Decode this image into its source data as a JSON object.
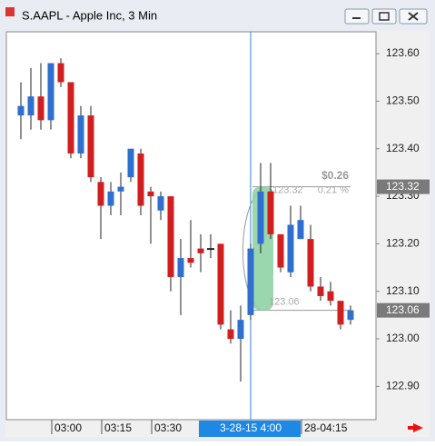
{
  "chart_data": {
    "type": "candlestick",
    "title": "S.AAPL - Apple Inc, 3 Min",
    "categories": [
      null,
      null,
      null,
      "03:00",
      null,
      null,
      null,
      null,
      "03:15",
      null,
      null,
      null,
      null,
      "03:30",
      null,
      null,
      null,
      null,
      null,
      null,
      null,
      null,
      null,
      "3-28-15  4:00",
      null,
      null,
      null,
      null,
      "28-04:15",
      null,
      null,
      null,
      null,
      null
    ],
    "highlight_category": 23,
    "open": [
      123.47,
      123.47,
      123.51,
      123.46,
      123.58,
      123.54,
      123.39,
      123.47,
      123.33,
      123.28,
      123.31,
      123.34,
      123.39,
      123.31,
      123.27,
      123.3,
      123.13,
      123.17,
      123.19,
      123.19,
      123.2,
      123.02,
      123.0,
      123.05,
      123.2,
      123.31,
      123.22,
      123.14,
      123.21,
      123.21,
      123.11,
      123.1,
      123.08,
      123.04
    ],
    "high": [
      123.54,
      123.57,
      123.58,
      123.58,
      123.59,
      123.54,
      123.49,
      123.49,
      123.34,
      123.33,
      123.35,
      123.4,
      123.4,
      123.32,
      123.31,
      123.3,
      123.21,
      123.25,
      123.22,
      123.22,
      123.2,
      123.06,
      123.07,
      123.2,
      123.37,
      123.37,
      123.22,
      123.28,
      123.28,
      123.24,
      123.13,
      123.12,
      123.08,
      123.07
    ],
    "low": [
      123.42,
      123.44,
      123.44,
      123.44,
      123.53,
      123.38,
      123.38,
      123.33,
      123.21,
      123.26,
      123.26,
      123.33,
      123.26,
      123.2,
      123.25,
      123.1,
      123.05,
      123.15,
      123.14,
      123.17,
      123.02,
      122.99,
      122.91,
      123.04,
      123.18,
      123.21,
      123.14,
      123.13,
      123.21,
      123.1,
      123.08,
      123.07,
      123.02,
      123.03
    ],
    "close": [
      123.49,
      123.51,
      123.46,
      123.58,
      123.54,
      123.39,
      123.47,
      123.34,
      123.28,
      123.31,
      123.32,
      123.4,
      123.28,
      123.3,
      123.3,
      123.13,
      123.17,
      123.16,
      123.18,
      123.19,
      123.03,
      123.0,
      123.04,
      123.19,
      123.31,
      123.22,
      123.15,
      123.24,
      123.25,
      123.11,
      123.09,
      123.08,
      123.03,
      123.06
    ],
    "up_color": "#2f6fcf",
    "down_color": "#d11f1f",
    "ylim": [
      122.83,
      123.646
    ],
    "yticks": [
      {
        "value": 122.9,
        "label": "122.90"
      },
      {
        "value": 123.0,
        "label": "123.00"
      },
      {
        "value": 123.1,
        "label": "123.10"
      },
      {
        "value": 123.2,
        "label": "123.20"
      },
      {
        "value": 123.3,
        "label": "123.30"
      },
      {
        "value": 123.4,
        "label": "123.40"
      },
      {
        "value": 123.5,
        "label": "123.50"
      },
      {
        "value": 123.6,
        "label": "123.60"
      }
    ],
    "price_tags": [
      123.32,
      123.06
    ],
    "measure": {
      "from": 123.06,
      "to": 123.32,
      "change": {
        "value": 0.26,
        "label": "$0.26"
      },
      "percent": {
        "value": 0.21,
        "label": "0.21 %"
      }
    }
  }
}
